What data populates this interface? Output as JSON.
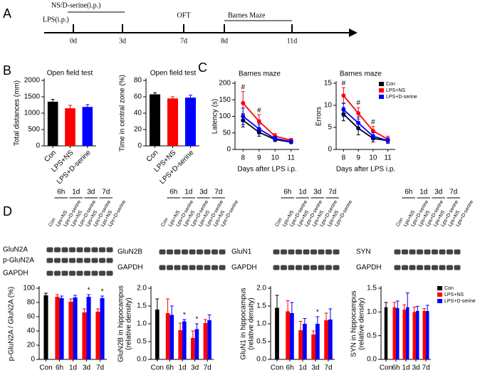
{
  "panels": [
    "A",
    "B",
    "C",
    "D"
  ],
  "timeline": {
    "days": [
      "0d",
      "3d",
      "7d",
      "8d",
      "11d"
    ],
    "events": [
      "NS/D-serine(i.p.)",
      "LPS(i.p.)",
      "OFT",
      "Barnes Maze"
    ]
  },
  "blots": [
    {
      "times": [
        "6h",
        "1d",
        "3d",
        "7d"
      ],
      "lanes": [
        "Con",
        "Lps+NS",
        "Lps+D-serine",
        "Lps+NS",
        "Lps+D-serine",
        "Lps+NS",
        "Lps+D-serine",
        "Lps+NS",
        "Lps+D-serine"
      ],
      "rows": [
        "GluN2A",
        "p-GluN2A",
        "GAPDH"
      ]
    },
    {
      "times": [
        "6h",
        "1d",
        "3d",
        "7d"
      ],
      "lanes": [
        "Con",
        "Lps+NS",
        "Lps+D-serine",
        "Lps+NS",
        "Lps+D-serine",
        "Lps+NS",
        "Lps+D-serine",
        "Lps+NS",
        "Lps+D-serine"
      ],
      "rows": [
        "GluN2B",
        "GAPDH"
      ]
    },
    {
      "times": [
        "6h",
        "1d",
        "3d",
        "7d"
      ],
      "lanes": [
        "Con",
        "Lps+NS",
        "Lps+D-serine",
        "Lps+NS",
        "Lps+D-serine",
        "Lps+NS",
        "Lps+D-serine",
        "Lps+NS",
        "Lps+D-serine"
      ],
      "rows": [
        "GluN1",
        "GAPDH"
      ]
    },
    {
      "times": [
        "6h",
        "1d",
        "3d",
        "7d"
      ],
      "lanes": [
        "Con",
        "Lps+NS",
        "Lps+D-serine",
        "Lps+NS",
        "Lps+D-serine",
        "Lps+NS",
        "Lps+D-serine",
        "Lps+NS",
        "Lps+D-serine"
      ],
      "rows": [
        "SYN",
        "GAPDH"
      ]
    }
  ],
  "chart_data": [
    {
      "type": "bar",
      "title": "Open field test",
      "ylabel": "Total distances (mm)",
      "categories": [
        "Con",
        "LPS+NS",
        "LPS+D-serine"
      ],
      "values": [
        1350,
        1150,
        1190
      ],
      "errors": [
        70,
        90,
        70
      ],
      "colors": [
        "#000000",
        "#ff0000",
        "#0000ff"
      ],
      "ylim": [
        0,
        2000
      ],
      "yticks": [
        0,
        500,
        1000,
        1500,
        2000
      ]
    },
    {
      "type": "bar",
      "title": "Open field test",
      "ylabel": "Time in central zone (%)",
      "categories": [
        "Con",
        "LPS+NS",
        "LPS+D-serine"
      ],
      "values": [
        63,
        58,
        59
      ],
      "errors": [
        2,
        2,
        3
      ],
      "colors": [
        "#000000",
        "#ff0000",
        "#0000ff"
      ],
      "ylim": [
        0,
        80
      ],
      "yticks": [
        0,
        20,
        40,
        60,
        80
      ]
    },
    {
      "type": "line",
      "title": "Barnes maze",
      "ylabel": "Latency (s)",
      "xlabel": "Days after LPS i.p.",
      "categories": [
        "8",
        "9",
        "10",
        "11"
      ],
      "ylim": [
        0,
        200
      ],
      "yticks": [
        0,
        50,
        100,
        150,
        200
      ],
      "series": [
        {
          "color": "#000000",
          "values": [
            88,
            52,
            30,
            22
          ],
          "errors": [
            20,
            12,
            6,
            4
          ]
        },
        {
          "color": "#ff0000",
          "values": [
            140,
            85,
            40,
            28
          ],
          "errors": [
            35,
            20,
            8,
            5
          ]
        },
        {
          "color": "#0000ff",
          "values": [
            100,
            62,
            33,
            24
          ],
          "errors": [
            25,
            15,
            7,
            4
          ]
        }
      ],
      "annotations": [
        {
          "category": "8",
          "text": "#"
        },
        {
          "category": "9",
          "text": "#"
        }
      ]
    },
    {
      "type": "line",
      "title": "Barnes maze",
      "ylabel": "Errors",
      "xlabel": "Days after LPS i.p.",
      "categories": [
        "8",
        "9",
        "10",
        "11"
      ],
      "ylim": [
        0,
        15
      ],
      "yticks": [
        0,
        5,
        10,
        15
      ],
      "legend": "upper right",
      "series": [
        {
          "name": "Con",
          "color": "#000000",
          "values": [
            8,
            4.8,
            2.5,
            2
          ],
          "errors": [
            1.5,
            1.5,
            0.8,
            0.6
          ]
        },
        {
          "name": "LPS+NS",
          "color": "#ff0000",
          "values": [
            12.2,
            8.2,
            4.2,
            2.3
          ],
          "errors": [
            1.8,
            1.3,
            1,
            0.7
          ]
        },
        {
          "name": "LPS+D-serine",
          "color": "#0000ff",
          "values": [
            9,
            6,
            3,
            2
          ],
          "errors": [
            1.5,
            1.4,
            0.8,
            0.6
          ]
        }
      ],
      "annotations": [
        {
          "category": "8",
          "text": "#"
        },
        {
          "category": "9",
          "text": "#"
        },
        {
          "category": "10",
          "text": "#"
        }
      ]
    },
    {
      "type": "bar",
      "ylabel": "p-GluN2A / GluN2A (%)",
      "categories": [
        "Con",
        "6h",
        "1d",
        "3d",
        "7d"
      ],
      "ylim": [
        0,
        100
      ],
      "yticks": [
        0,
        20,
        40,
        60,
        80,
        100
      ],
      "series": [
        {
          "color": "#000000",
          "values": [
            90,
            null,
            null,
            null,
            null
          ],
          "errors": [
            3,
            null,
            null,
            null,
            null
          ]
        },
        {
          "color": "#ff0000",
          "values": [
            null,
            88,
            81,
            66,
            67
          ],
          "errors": [
            null,
            3,
            4,
            5,
            4
          ]
        },
        {
          "color": "#0000ff",
          "values": [
            null,
            86,
            87,
            88,
            86
          ],
          "errors": [
            null,
            3,
            3,
            3,
            3
          ]
        }
      ],
      "annotations": [
        {
          "category": "3d",
          "text": "*"
        },
        {
          "category": "7d",
          "text": "*"
        }
      ]
    },
    {
      "type": "bar",
      "ylabel": [
        "GluN2B in hippocampus",
        "(relative density)"
      ],
      "categories": [
        "Con",
        "6h",
        "1d",
        "3d",
        "7d"
      ],
      "ylim": [
        0,
        2
      ],
      "yticks": [
        {
          "value": 0,
          "label": "0.0"
        },
        0.5,
        {
          "value": 1,
          "label": "1.0"
        },
        1.5,
        {
          "value": 2,
          "label": "2.0"
        }
      ],
      "series": [
        {
          "color": "#000000",
          "values": [
            1.4,
            null,
            null,
            null,
            null
          ],
          "errors": [
            0.3,
            null,
            null,
            null,
            null
          ]
        },
        {
          "color": "#ff0000",
          "values": [
            null,
            1.3,
            0.82,
            0.6,
            1.02
          ],
          "errors": [
            null,
            0.4,
            0.2,
            0.2,
            0.1
          ]
        },
        {
          "color": "#0000ff",
          "values": [
            null,
            1.25,
            1.07,
            0.85,
            1.1
          ],
          "errors": [
            null,
            0.25,
            0.05,
            0.15,
            0.15
          ]
        }
      ],
      "annotations": [
        {
          "category": "1d",
          "text": "*"
        },
        {
          "category": "3d",
          "text": "*"
        }
      ]
    },
    {
      "type": "bar",
      "ylabel": [
        "GluN1 in hippocampus",
        "(relative density)"
      ],
      "categories": [
        "Con",
        "6h",
        "1d",
        "3d",
        "7d"
      ],
      "ylim": [
        0,
        2
      ],
      "yticks": [
        {
          "value": 0,
          "label": "0.0"
        },
        0.5,
        {
          "value": 1,
          "label": "1.0"
        },
        1.5,
        {
          "value": 2,
          "label": "2.0"
        }
      ],
      "series": [
        {
          "color": "#000000",
          "values": [
            1.45,
            null,
            null,
            null,
            null
          ],
          "errors": [
            0.35,
            null,
            null,
            null,
            null
          ]
        },
        {
          "color": "#ff0000",
          "values": [
            null,
            1.35,
            0.82,
            0.7,
            1.1
          ],
          "errors": [
            null,
            0.3,
            0.25,
            0.1,
            0.2
          ]
        },
        {
          "color": "#0000ff",
          "values": [
            null,
            1.3,
            1,
            1,
            1.12
          ],
          "errors": [
            null,
            0.3,
            0.15,
            0.2,
            0.3
          ]
        }
      ],
      "annotations": [
        {
          "category": "3d",
          "text": "*"
        }
      ]
    },
    {
      "type": "bar",
      "ylabel": [
        "SYN in hippocampus",
        "(relative density)"
      ],
      "categories": [
        "Con",
        "6h",
        "1d",
        "3d",
        "7d"
      ],
      "ylim": [
        0,
        1.5
      ],
      "yticks": [
        {
          "value": 0,
          "label": "0.0"
        },
        0.5,
        {
          "value": 1,
          "label": "1.0"
        },
        1.5
      ],
      "legend": "right",
      "series": [
        {
          "name": "Con",
          "color": "#000000",
          "values": [
            1.1,
            null,
            null,
            null,
            null
          ],
          "errors": [
            0.1,
            null,
            null,
            null,
            null
          ]
        },
        {
          "name": "LPS+NS",
          "color": "#ff0000",
          "values": [
            null,
            1.1,
            1.05,
            1,
            1.02
          ],
          "errors": [
            null,
            0.1,
            0.1,
            0.1,
            0.05
          ]
        },
        {
          "name": "LPS+D-serine",
          "color": "#0000ff",
          "values": [
            null,
            1.08,
            1.1,
            1.02,
            1.02
          ],
          "errors": [
            null,
            0.15,
            0.3,
            0.1,
            0.12
          ]
        }
      ]
    }
  ]
}
